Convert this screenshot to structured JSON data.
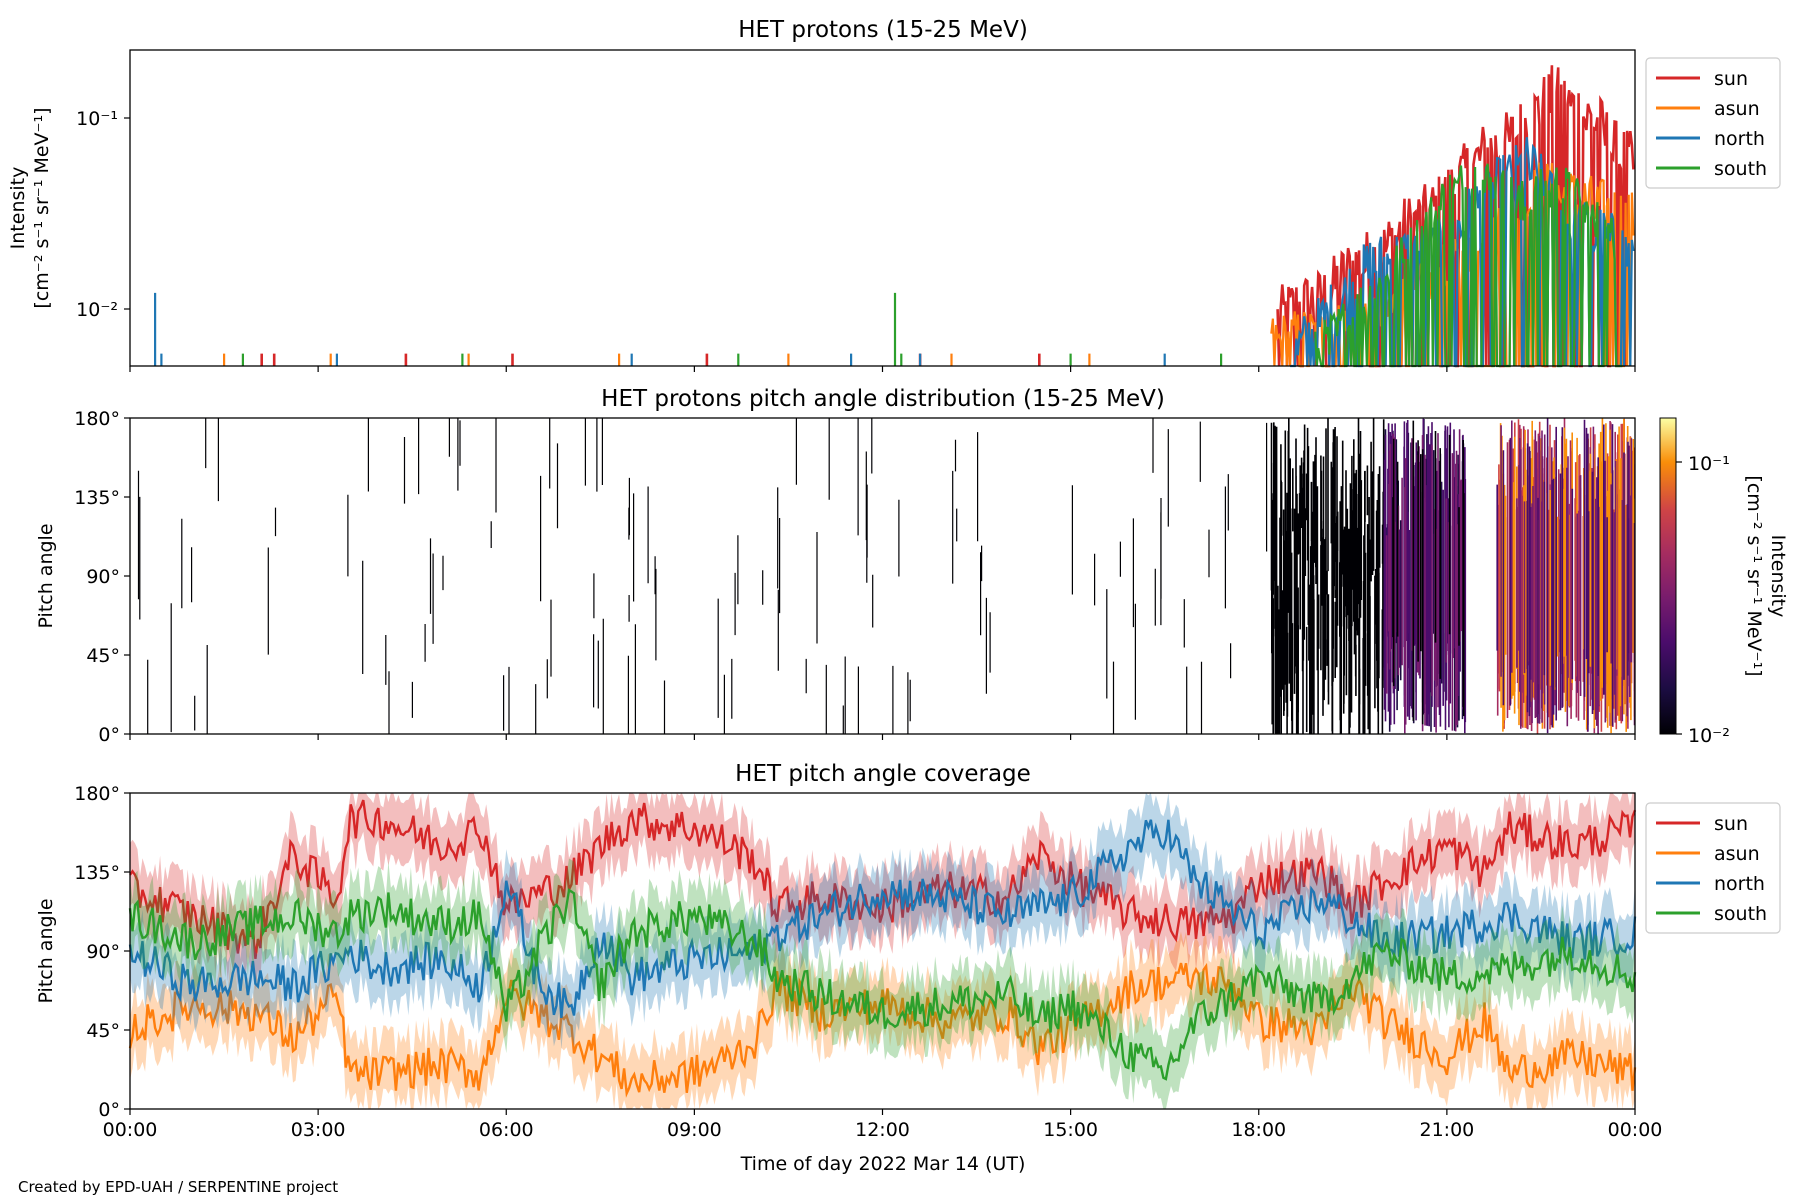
{
  "figure": {
    "credit": "Created by EPD-UAH / SERPENTINE project",
    "xlabel": "Time of day 2022 Mar 14 (UT)",
    "time_ticks": [
      "00:00",
      "03:00",
      "06:00",
      "09:00",
      "12:00",
      "15:00",
      "18:00",
      "21:00",
      "00:00"
    ]
  },
  "colors": {
    "sun": "#d62728",
    "asun": "#ff7f0e",
    "north": "#1f77b4",
    "south": "#2ca02c"
  },
  "chart_data": [
    {
      "type": "line",
      "title": "HET protons (15-25 MeV)",
      "ylabel": [
        "Intensity",
        "[cm⁻² s⁻¹ sr⁻¹ MeV⁻¹]"
      ],
      "yscale": "log",
      "ylim": [
        0.005,
        0.22
      ],
      "yticks": [
        "10⁻¹",
        "10⁻²"
      ],
      "xlim_hours": [
        0,
        24
      ],
      "legend": {
        "position": "right",
        "entries": [
          "sun",
          "asun",
          "north",
          "south"
        ]
      },
      "series": [
        {
          "name": "sun",
          "points": [
            [
              2.1,
              0.0058
            ],
            [
              2.3,
              0.0058
            ],
            [
              4.4,
              0.0058
            ],
            [
              6.1,
              0.0058
            ],
            [
              9.2,
              0.0058
            ],
            [
              12.6,
              0.0058
            ],
            [
              14.5,
              0.0058
            ],
            [
              18.3,
              0.0095
            ],
            [
              18.6,
              0.011
            ],
            [
              19.0,
              0.012
            ],
            [
              19.5,
              0.018
            ],
            [
              19.9,
              0.02
            ],
            [
              20.3,
              0.028
            ],
            [
              20.8,
              0.035
            ],
            [
              21.2,
              0.05
            ],
            [
              21.6,
              0.07
            ],
            [
              22.0,
              0.08
            ],
            [
              22.4,
              0.11
            ],
            [
              22.7,
              0.14
            ],
            [
              23.0,
              0.12
            ],
            [
              23.4,
              0.1
            ],
            [
              23.7,
              0.07
            ],
            [
              23.99,
              0.06
            ]
          ]
        },
        {
          "name": "asun",
          "points": [
            [
              1.5,
              0.0058
            ],
            [
              3.2,
              0.0058
            ],
            [
              5.4,
              0.0058
            ],
            [
              7.8,
              0.0058
            ],
            [
              10.5,
              0.0058
            ],
            [
              13.1,
              0.0058
            ],
            [
              15.3,
              0.0058
            ],
            [
              18.2,
              0.007
            ],
            [
              19.2,
              0.008
            ],
            [
              20.0,
              0.01
            ],
            [
              20.8,
              0.015
            ],
            [
              21.5,
              0.02
            ],
            [
              22.0,
              0.03
            ],
            [
              22.5,
              0.045
            ],
            [
              23.0,
              0.04
            ],
            [
              23.5,
              0.035
            ],
            [
              23.99,
              0.03
            ]
          ]
        },
        {
          "name": "north",
          "points": [
            [
              0.4,
              0.012
            ],
            [
              0.5,
              0.0058
            ],
            [
              3.3,
              0.0058
            ],
            [
              8.0,
              0.0058
            ],
            [
              11.5,
              0.0058
            ],
            [
              12.6,
              0.0058
            ],
            [
              16.5,
              0.0058
            ],
            [
              18.5,
              0.0058
            ],
            [
              19.8,
              0.018
            ],
            [
              20.9,
              0.022
            ],
            [
              21.6,
              0.04
            ],
            [
              22.3,
              0.06
            ],
            [
              22.9,
              0.03
            ],
            [
              23.5,
              0.025
            ],
            [
              23.99,
              0.02
            ]
          ]
        },
        {
          "name": "south",
          "points": [
            [
              1.8,
              0.0058
            ],
            [
              5.3,
              0.0058
            ],
            [
              9.7,
              0.0058
            ],
            [
              12.2,
              0.012
            ],
            [
              12.3,
              0.0058
            ],
            [
              15.0,
              0.0058
            ],
            [
              17.4,
              0.0058
            ],
            [
              18.9,
              0.0058
            ],
            [
              20.4,
              0.02
            ],
            [
              21.0,
              0.04
            ],
            [
              21.5,
              0.05
            ],
            [
              22.2,
              0.035
            ],
            [
              22.8,
              0.045
            ],
            [
              23.3,
              0.03
            ],
            [
              23.8,
              0.02
            ]
          ]
        }
      ]
    },
    {
      "type": "heatmap",
      "title": "HET protons pitch angle distribution (15-25 MeV)",
      "ylabel": "Pitch angle",
      "yticks": [
        "180°",
        "135°",
        "90°",
        "45°",
        "0°"
      ],
      "ylim": [
        0,
        180
      ],
      "xlim_hours": [
        0,
        24
      ],
      "colorbar": {
        "label": [
          "Intensity",
          "[cm⁻² s⁻¹ sr⁻¹ MeV⁻¹]"
        ],
        "scale": "log",
        "range": [
          0.01,
          0.15
        ],
        "ticks": [
          "10⁻¹",
          "10⁻²"
        ],
        "colormap": "inferno"
      },
      "regions": [
        {
          "t_start": 0.0,
          "t_end": 18.2,
          "pattern": "sparse low-intensity vertical streaks",
          "intensity": 0.01
        },
        {
          "t_start": 18.2,
          "t_end": 20.0,
          "pattern": "dense streaks, mostly 20°-140°",
          "intensity": 0.011
        },
        {
          "t_start": 20.0,
          "t_end": 21.3,
          "pattern": "dense columns across all pitch angles",
          "intensity": 0.02
        },
        {
          "t_start": 21.8,
          "t_end": 24.0,
          "pattern": "dense columns; high intensity near 120°-180°",
          "intensity": 0.06
        }
      ]
    },
    {
      "type": "line",
      "title": "HET pitch angle coverage",
      "ylabel": "Pitch angle",
      "yticks": [
        "180°",
        "135°",
        "90°",
        "45°",
        "0°"
      ],
      "ylim": [
        0,
        180
      ],
      "xlim_hours": [
        0,
        24
      ],
      "legend": {
        "position": "right",
        "entries": [
          "sun",
          "asun",
          "north",
          "south"
        ]
      },
      "series": [
        {
          "name": "sun",
          "band": 18,
          "points": [
            [
              0,
              125
            ],
            [
              1,
              110
            ],
            [
              2,
              95
            ],
            [
              2.6,
              145
            ],
            [
              3.3,
              120
            ],
            [
              3.5,
              165
            ],
            [
              4,
              165
            ],
            [
              5,
              150
            ],
            [
              5.6,
              160
            ],
            [
              6,
              115
            ],
            [
              7,
              130
            ],
            [
              7.5,
              150
            ],
            [
              8,
              165
            ],
            [
              9,
              160
            ],
            [
              9.6,
              150
            ],
            [
              10,
              140
            ],
            [
              10.3,
              115
            ],
            [
              11,
              120
            ],
            [
              12,
              115
            ],
            [
              13,
              125
            ],
            [
              14,
              120
            ],
            [
              14.5,
              145
            ],
            [
              15,
              130
            ],
            [
              16,
              110
            ],
            [
              17,
              105
            ],
            [
              17.6,
              110
            ],
            [
              18,
              130
            ],
            [
              19,
              135
            ],
            [
              19.5,
              115
            ],
            [
              20,
              130
            ],
            [
              21,
              150
            ],
            [
              21.6,
              135
            ],
            [
              22,
              160
            ],
            [
              23,
              150
            ],
            [
              24,
              160
            ]
          ]
        },
        {
          "name": "asun",
          "band": 18,
          "points": [
            [
              0,
              45
            ],
            [
              1,
              60
            ],
            [
              2,
              55
            ],
            [
              2.6,
              40
            ],
            [
              3.3,
              65
            ],
            [
              3.5,
              20
            ],
            [
              4,
              20
            ],
            [
              5,
              25
            ],
            [
              5.6,
              20
            ],
            [
              6,
              65
            ],
            [
              7,
              45
            ],
            [
              7.5,
              30
            ],
            [
              8,
              15
            ],
            [
              9,
              20
            ],
            [
              9.6,
              30
            ],
            [
              10,
              40
            ],
            [
              10.3,
              70
            ],
            [
              11,
              55
            ],
            [
              12,
              60
            ],
            [
              13,
              50
            ],
            [
              14,
              55
            ],
            [
              14.5,
              35
            ],
            [
              15,
              45
            ],
            [
              16,
              70
            ],
            [
              17,
              75
            ],
            [
              17.6,
              70
            ],
            [
              18,
              50
            ],
            [
              19,
              45
            ],
            [
              19.5,
              70
            ],
            [
              20,
              50
            ],
            [
              21,
              30
            ],
            [
              21.6,
              50
            ],
            [
              22,
              20
            ],
            [
              23,
              30
            ],
            [
              24,
              20
            ]
          ]
        },
        {
          "name": "north",
          "band": 18,
          "points": [
            [
              0,
              90
            ],
            [
              1,
              70
            ],
            [
              2,
              75
            ],
            [
              2.6,
              70
            ],
            [
              3.3,
              85
            ],
            [
              3.5,
              90
            ],
            [
              4,
              80
            ],
            [
              5,
              85
            ],
            [
              5.6,
              70
            ],
            [
              6,
              130
            ],
            [
              6.5,
              75
            ],
            [
              7,
              55
            ],
            [
              7.5,
              100
            ],
            [
              8,
              75
            ],
            [
              9,
              85
            ],
            [
              10,
              90
            ],
            [
              10.3,
              100
            ],
            [
              11,
              110
            ],
            [
              12,
              125
            ],
            [
              13,
              120
            ],
            [
              14,
              110
            ],
            [
              15,
              120
            ],
            [
              16,
              150
            ],
            [
              16.5,
              160
            ],
            [
              17,
              130
            ],
            [
              18,
              100
            ],
            [
              19,
              120
            ],
            [
              20,
              95
            ],
            [
              21,
              100
            ],
            [
              22,
              110
            ],
            [
              23,
              95
            ],
            [
              24,
              100
            ]
          ]
        },
        {
          "name": "south",
          "band": 18,
          "points": [
            [
              0,
              110
            ],
            [
              1,
              95
            ],
            [
              2,
              105
            ],
            [
              2.6,
              110
            ],
            [
              3.3,
              100
            ],
            [
              3.5,
              110
            ],
            [
              4,
              115
            ],
            [
              5,
              105
            ],
            [
              5.6,
              110
            ],
            [
              6,
              55
            ],
            [
              6.5,
              90
            ],
            [
              7,
              120
            ],
            [
              7.5,
              70
            ],
            [
              8,
              100
            ],
            [
              9,
              110
            ],
            [
              10,
              95
            ],
            [
              10.3,
              75
            ],
            [
              11,
              65
            ],
            [
              12,
              55
            ],
            [
              13,
              60
            ],
            [
              14,
              65
            ],
            [
              14.5,
              50
            ],
            [
              15,
              60
            ],
            [
              16,
              30
            ],
            [
              16.5,
              20
            ],
            [
              17,
              50
            ],
            [
              18,
              75
            ],
            [
              19,
              60
            ],
            [
              20,
              90
            ],
            [
              21,
              75
            ],
            [
              22,
              80
            ],
            [
              23,
              90
            ],
            [
              24,
              75
            ]
          ]
        }
      ]
    }
  ]
}
